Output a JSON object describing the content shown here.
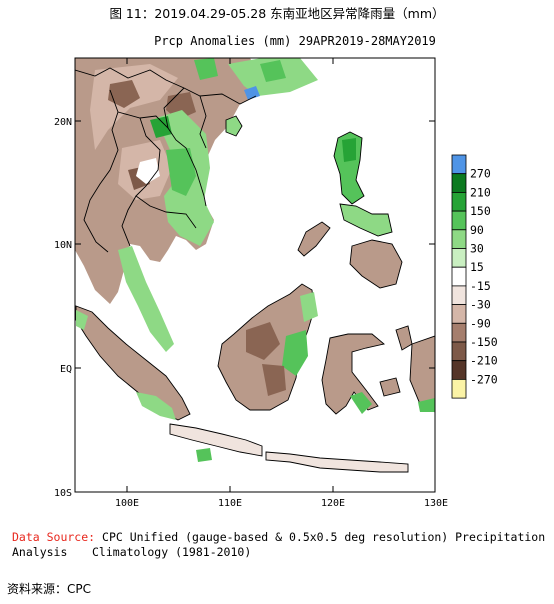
{
  "figure_title": "图 11：2019.04.29-05.28 东南亚地区异常降雨量（mm）",
  "map": {
    "title": "Prcp Anomalies (mm) 29APR2019-28MAY2019",
    "lat_ticks": [
      "20N",
      "10N",
      "EQ",
      "10S"
    ],
    "lon_ticks": [
      "100E",
      "110E",
      "120E",
      "130E"
    ],
    "extent": {
      "lon": [
        95,
        130
      ],
      "lat": [
        -10,
        25
      ]
    }
  },
  "colorbar": {
    "labels": [
      "270",
      "210",
      "150",
      "90",
      "30",
      "15",
      "-15",
      "-30",
      "-90",
      "-150",
      "-210",
      "-270"
    ],
    "colors": [
      "#4f94e6",
      "#0c7a20",
      "#26a336",
      "#55c35a",
      "#8ed985",
      "#c9efc1",
      "#ffffff",
      "#f0e4de",
      "#d4b6a8",
      "#a57e6d",
      "#7d5948",
      "#553528",
      "#fbf3a6"
    ]
  },
  "source": {
    "prefix": "Data Source:",
    "line1": "CPC Unified (gauge-based & 0.5x0.5 deg resolution) Precipitation Analysis",
    "line2": "Climatology (1981-2010)"
  },
  "credit": "资料来源：CPC"
}
